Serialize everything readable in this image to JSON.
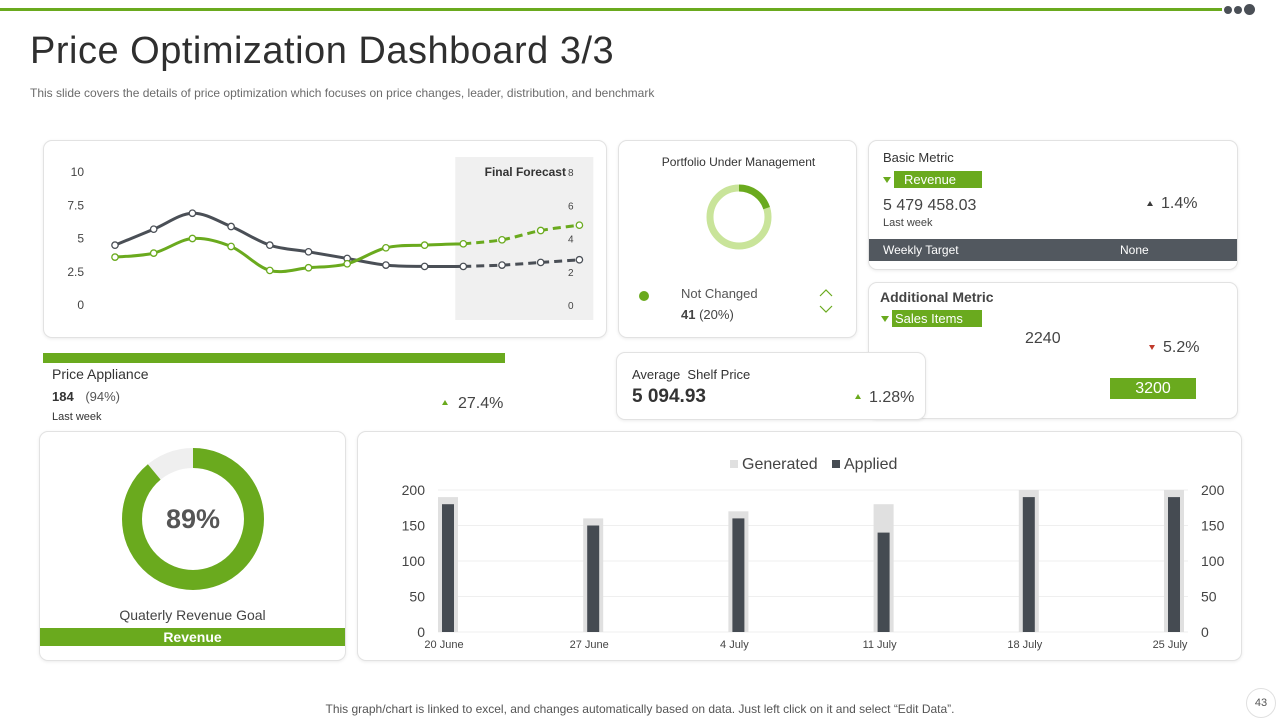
{
  "header": {
    "title": "Price Optimization Dashboard 3/3",
    "subtitle": "This slide covers the details of price optimization which focuses on price changes, leader, distribution, and benchmark"
  },
  "colors": {
    "accent": "#6aaa1e",
    "light_green": "#c9e49a",
    "dark": "#4a4f56",
    "light_gray": "#e3e3e3"
  },
  "portfolio": {
    "title": "Portfolio Under Management",
    "donut_fraction": 0.2,
    "status_label": "Not Changed",
    "count": "41",
    "percent": "(20%)",
    "up_icon": "chevron-up-icon",
    "down_icon": "chevron-down-icon"
  },
  "basic_metric": {
    "title": "Basic Metric",
    "tag": "Revenue",
    "value": "5 479 458.03",
    "period": "Last week",
    "change": "1.4%",
    "target_label": "Weekly Target",
    "target_value": "None"
  },
  "additional_metric": {
    "title": "Additional Metric",
    "tag": "Sales Items",
    "value": "2240",
    "change": "5.2%",
    "target": "3200"
  },
  "price_appliance": {
    "title": "Price Appliance",
    "count": "184",
    "percent": "(94%)",
    "period": "Last week",
    "change": "27.4%"
  },
  "shelf_price": {
    "title": "Average  Shelf Price",
    "value": "5 094.93",
    "change": "1.28%"
  },
  "revenue_goal": {
    "percent_label": "89%",
    "fraction": 0.89,
    "caption": "Quaterly Revenue Goal",
    "tag": "Revenue"
  },
  "footer": {
    "note": "This graph/chart is linked to excel,  and changes automatically based on data. Just left click on it and select “Edit Data”.",
    "page": "43"
  },
  "chart_data": [
    {
      "type": "line",
      "annotation": "Final Forecast",
      "x": [
        1,
        2,
        3,
        4,
        5,
        6,
        7,
        8,
        9,
        10,
        11,
        12,
        13
      ],
      "forecast_from_index": 9,
      "y_left_ticks": [
        "10",
        "7.5",
        "5",
        "2.5",
        "0"
      ],
      "y_right_ticks": [
        "8",
        "6",
        "4",
        "2",
        "0"
      ],
      "ylim_left": [
        0,
        10
      ],
      "ylim_right": [
        0,
        8
      ],
      "series": [
        {
          "color": "#4a4f56",
          "values": [
            4.5,
            5.7,
            6.9,
            5.9,
            4.5,
            4.0,
            3.5,
            3.0,
            2.9,
            2.9,
            3.0,
            3.2,
            3.4
          ]
        },
        {
          "color": "#6aaa1e",
          "values": [
            3.6,
            3.9,
            5.0,
            4.4,
            2.6,
            2.8,
            3.1,
            4.3,
            4.5,
            4.6,
            4.9,
            5.6,
            6.0
          ]
        }
      ]
    },
    {
      "type": "bar",
      "categories": [
        "20 June",
        "27 June",
        "4 July",
        "11 July",
        "18 July",
        "25 July"
      ],
      "y_ticks": [
        "200",
        "150",
        "100",
        "50",
        "0"
      ],
      "ylim": [
        0,
        200
      ],
      "series": [
        {
          "name": "Generated",
          "color": "#e0e0e0",
          "values": [
            190,
            160,
            170,
            180,
            200,
            200
          ]
        },
        {
          "name": "Applied",
          "color": "#454b52",
          "values": [
            180,
            150,
            160,
            140,
            190,
            190
          ]
        }
      ]
    }
  ]
}
